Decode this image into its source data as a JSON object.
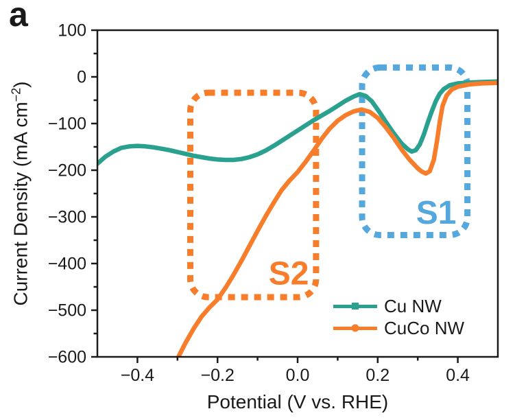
{
  "panel_label": "a",
  "colors": {
    "cu_nw": "#2aa18f",
    "cuco_nw": "#f87d2a",
    "s1_box": "#55a8de",
    "axis": "#1a1a1a",
    "background": "#ffffff"
  },
  "chart_data": {
    "type": "line",
    "title": "",
    "xlabel": "Potential (V vs. RHE)",
    "ylabel": "Current Density (mA cm−2)",
    "ylabel_parts": {
      "pre": "Current Density (mA cm",
      "sup": "−2",
      "post": ")"
    },
    "xlim": [
      -0.5,
      0.5
    ],
    "ylim": [
      -600,
      100
    ],
    "grid": false,
    "x_ticks": [
      {
        "v": -0.4,
        "label": "−0.4"
      },
      {
        "v": -0.2,
        "label": "−0.2"
      },
      {
        "v": 0.0,
        "label": "0.0"
      },
      {
        "v": 0.2,
        "label": "0.2"
      },
      {
        "v": 0.4,
        "label": "0.4"
      }
    ],
    "y_ticks": [
      {
        "v": 100,
        "label": "100"
      },
      {
        "v": 0,
        "label": "0"
      },
      {
        "v": -100,
        "label": "−100"
      },
      {
        "v": -200,
        "label": "−200"
      },
      {
        "v": -300,
        "label": "−300"
      },
      {
        "v": -400,
        "label": "−400"
      },
      {
        "v": -500,
        "label": "−500"
      },
      {
        "v": -600,
        "label": "−600"
      }
    ],
    "x_minor_ticks": [
      -0.3,
      -0.1,
      0.1,
      0.3
    ],
    "y_minor_ticks": [
      50,
      -50,
      -150,
      -250,
      -350,
      -450,
      -550
    ],
    "legend": {
      "position": "bottom-right",
      "entries": [
        {
          "name": "Cu NW",
          "color": "#2aa18f",
          "marker": "square"
        },
        {
          "name": "CuCo NW",
          "color": "#f87d2a",
          "marker": "circle"
        }
      ]
    },
    "annotations": [
      {
        "label": "S1",
        "color": "#55a8de",
        "x0": 0.161,
        "x1": 0.424,
        "y0": -339,
        "y1": 20,
        "label_x": 0.346,
        "label_y": -290
      },
      {
        "label": "S2",
        "color": "#f87d2a",
        "x0": -0.268,
        "x1": 0.046,
        "y0": -472,
        "y1": -34,
        "label_x": -0.022,
        "label_y": -420
      }
    ],
    "series": [
      {
        "name": "Cu NW",
        "color": "#2aa18f",
        "points": [
          [
            -0.5,
            -186
          ],
          [
            -0.48,
            -171
          ],
          [
            -0.46,
            -160
          ],
          [
            -0.44,
            -152
          ],
          [
            -0.42,
            -149
          ],
          [
            -0.4,
            -148
          ],
          [
            -0.38,
            -149
          ],
          [
            -0.36,
            -151
          ],
          [
            -0.34,
            -154
          ],
          [
            -0.32,
            -157
          ],
          [
            -0.3,
            -161
          ],
          [
            -0.28,
            -165
          ],
          [
            -0.26,
            -169
          ],
          [
            -0.24,
            -172
          ],
          [
            -0.22,
            -175
          ],
          [
            -0.2,
            -177
          ],
          [
            -0.18,
            -178
          ],
          [
            -0.16,
            -178
          ],
          [
            -0.14,
            -176
          ],
          [
            -0.12,
            -172
          ],
          [
            -0.1,
            -166
          ],
          [
            -0.08,
            -158
          ],
          [
            -0.06,
            -148
          ],
          [
            -0.04,
            -137
          ],
          [
            -0.02,
            -126
          ],
          [
            0.0,
            -115
          ],
          [
            0.02,
            -104
          ],
          [
            0.04,
            -93
          ],
          [
            0.06,
            -83
          ],
          [
            0.08,
            -73
          ],
          [
            0.1,
            -62
          ],
          [
            0.12,
            -51
          ],
          [
            0.14,
            -42
          ],
          [
            0.155,
            -37
          ],
          [
            0.17,
            -41
          ],
          [
            0.185,
            -52
          ],
          [
            0.2,
            -70
          ],
          [
            0.22,
            -96
          ],
          [
            0.24,
            -121
          ],
          [
            0.26,
            -143
          ],
          [
            0.275,
            -155
          ],
          [
            0.285,
            -160
          ],
          [
            0.295,
            -157
          ],
          [
            0.305,
            -145
          ],
          [
            0.315,
            -124
          ],
          [
            0.325,
            -98
          ],
          [
            0.335,
            -74
          ],
          [
            0.345,
            -52
          ],
          [
            0.355,
            -36
          ],
          [
            0.365,
            -26
          ],
          [
            0.38,
            -18
          ],
          [
            0.4,
            -14
          ],
          [
            0.43,
            -12
          ],
          [
            0.46,
            -11
          ],
          [
            0.5,
            -10
          ]
        ]
      },
      {
        "name": "CuCo NW",
        "color": "#f87d2a",
        "points": [
          [
            -0.315,
            -640
          ],
          [
            -0.3,
            -604
          ],
          [
            -0.28,
            -570
          ],
          [
            -0.26,
            -540
          ],
          [
            -0.24,
            -514
          ],
          [
            -0.22,
            -494
          ],
          [
            -0.2,
            -477
          ],
          [
            -0.18,
            -452
          ],
          [
            -0.16,
            -424
          ],
          [
            -0.14,
            -394
          ],
          [
            -0.12,
            -362
          ],
          [
            -0.1,
            -330
          ],
          [
            -0.08,
            -299
          ],
          [
            -0.06,
            -270
          ],
          [
            -0.04,
            -243
          ],
          [
            -0.02,
            -222
          ],
          [
            0.0,
            -204
          ],
          [
            0.02,
            -182
          ],
          [
            0.04,
            -158
          ],
          [
            0.06,
            -133
          ],
          [
            0.08,
            -111
          ],
          [
            0.1,
            -94
          ],
          [
            0.12,
            -82
          ],
          [
            0.14,
            -74
          ],
          [
            0.16,
            -70
          ],
          [
            0.18,
            -75
          ],
          [
            0.2,
            -88
          ],
          [
            0.22,
            -108
          ],
          [
            0.24,
            -131
          ],
          [
            0.26,
            -156
          ],
          [
            0.28,
            -178
          ],
          [
            0.3,
            -196
          ],
          [
            0.31,
            -203
          ],
          [
            0.32,
            -207
          ],
          [
            0.33,
            -202
          ],
          [
            0.34,
            -178
          ],
          [
            0.348,
            -138
          ],
          [
            0.355,
            -96
          ],
          [
            0.362,
            -62
          ],
          [
            0.372,
            -40
          ],
          [
            0.385,
            -27
          ],
          [
            0.4,
            -21
          ],
          [
            0.43,
            -16
          ],
          [
            0.46,
            -14
          ],
          [
            0.5,
            -13
          ]
        ]
      }
    ]
  }
}
